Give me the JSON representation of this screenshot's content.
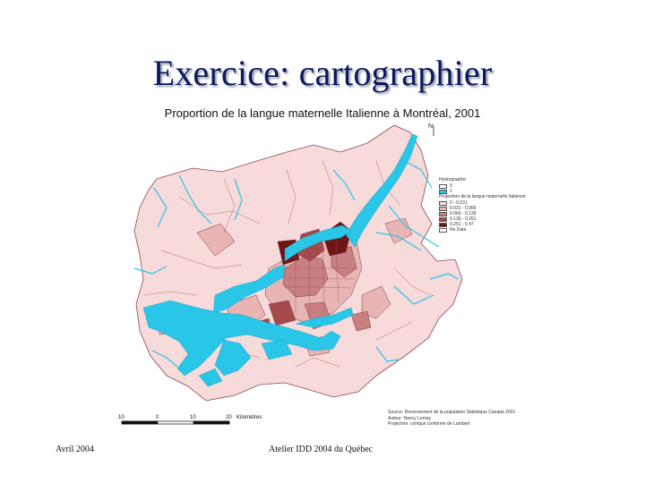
{
  "slide": {
    "title": "Exercice: cartographier",
    "footer_left": "Avril 2004",
    "footer_center": "Atelier IDD 2004 du Québec"
  },
  "map": {
    "title": "Proportion de la langue maternelle Italienne à Montréal, 2001",
    "north_label": "N",
    "legend": {
      "hydro_heading": "Hydrographie",
      "hydro_items": [
        {
          "label": "0",
          "color": "#ffffff"
        },
        {
          "label": "1",
          "color": "#29c6e8"
        }
      ],
      "prop_heading": "Proportion de la langue maternelle Italienne",
      "prop_items": [
        {
          "label": "0 - 0.031",
          "color": "#f8e0e0"
        },
        {
          "label": "0.031 - 0.066",
          "color": "#e8b4b4"
        },
        {
          "label": "0.066 - 0.139",
          "color": "#c98080"
        },
        {
          "label": "0.139 - 0.251",
          "color": "#a44a4a"
        },
        {
          "label": "0.251 - 0.47",
          "color": "#6e1616"
        },
        {
          "label": "No Data",
          "color": "#ffffff"
        }
      ]
    },
    "scale": {
      "ticks": [
        "10",
        "0",
        "10",
        "20"
      ],
      "unit": "Kilomètres"
    },
    "source_lines": [
      "Source: Recensement de la population Statistique Canada 2001",
      "Auteur: Nancy Lemay",
      "Projection: conique conforme de Lambert"
    ],
    "colors": {
      "water": "#29c6e8",
      "base_land": "#f7dada",
      "boundary": "#8a4a55"
    }
  }
}
